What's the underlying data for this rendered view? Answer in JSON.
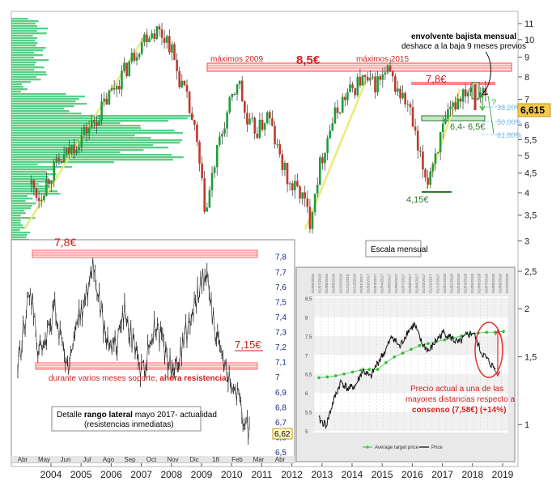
{
  "chart_data": [
    {
      "type": "candlestick",
      "title": "",
      "x_ticks": [
        "2004",
        "2005",
        "2006",
        "2007",
        "2008",
        "2009",
        "2010",
        "2011",
        "2012",
        "2013",
        "2014",
        "2015",
        "2016",
        "2017",
        "2018",
        "2019"
      ],
      "y_ticks": [
        11,
        10,
        9,
        8,
        7,
        6,
        5.5,
        5,
        4.5,
        4,
        3.5,
        3,
        2.5,
        2,
        1.5,
        1
      ],
      "ylim": [
        0.9,
        11.5
      ],
      "yscale": "log",
      "close_path": [
        [
          2003.35,
          4.2
        ],
        [
          2003.6,
          3.9
        ],
        [
          2004.0,
          4.5
        ],
        [
          2004.5,
          5.0
        ],
        [
          2005.0,
          5.6
        ],
        [
          2005.5,
          6.2
        ],
        [
          2006.0,
          7.3
        ],
        [
          2006.5,
          8.4
        ],
        [
          2006.9,
          9.6
        ],
        [
          2007.2,
          10.4
        ],
        [
          2007.5,
          10.6
        ],
        [
          2007.9,
          10.0
        ],
        [
          2008.2,
          8.2
        ],
        [
          2008.5,
          7.0
        ],
        [
          2008.8,
          5.6
        ],
        [
          2009.0,
          4.2
        ],
        [
          2009.15,
          3.5
        ],
        [
          2009.4,
          4.6
        ],
        [
          2009.8,
          6.2
        ],
        [
          2010.1,
          7.3
        ],
        [
          2010.2,
          8.0
        ],
        [
          2010.5,
          6.0
        ],
        [
          2010.9,
          5.8
        ],
        [
          2011.2,
          6.4
        ],
        [
          2011.5,
          5.2
        ],
        [
          2011.9,
          4.2
        ],
        [
          2012.3,
          4.0
        ],
        [
          2012.6,
          3.4
        ],
        [
          2012.9,
          4.6
        ],
        [
          2013.3,
          6.0
        ],
        [
          2013.7,
          7.0
        ],
        [
          2014.0,
          7.4
        ],
        [
          2014.3,
          7.9
        ],
        [
          2014.6,
          7.6
        ],
        [
          2014.9,
          7.8
        ],
        [
          2015.2,
          8.2
        ],
        [
          2015.5,
          7.4
        ],
        [
          2015.9,
          6.6
        ],
        [
          2016.2,
          5.0
        ],
        [
          2016.5,
          4.3
        ],
        [
          2016.8,
          5.2
        ],
        [
          2017.1,
          6.0
        ],
        [
          2017.4,
          6.8
        ],
        [
          2017.7,
          7.4
        ],
        [
          2018.0,
          7.6
        ],
        [
          2018.3,
          7.4
        ],
        [
          2018.45,
          7.0
        ],
        [
          2018.55,
          6.615
        ]
      ],
      "annotations": {
        "max_label": "8,5€",
        "max_2009": "máximos 2009",
        "max_2015": "máximos 2015",
        "res_78": "7,8€",
        "support_band": "6,4- 6,5€",
        "low_415": "4,15€",
        "fib_382": "38,20%",
        "fib_50": "50,00%",
        "fib_618": "61,80%",
        "question": "?",
        "current_price": "6,615",
        "envolvente_title": "envolvente bajista mensual",
        "envolvente_desc": "deshace a la baja 9 meses previos",
        "scale_label": "Escala mensual"
      }
    },
    {
      "type": "line",
      "title": "",
      "x_ticks": [
        "Abr",
        "May",
        "Jun",
        "Jul",
        "Ago",
        "Sep",
        "Oct",
        "Nov",
        "Dic",
        "18",
        "Feb",
        "Mar",
        "Abr"
      ],
      "y_ticks": [
        "7,8",
        "7,7",
        "7,6",
        "7,5",
        "7,4",
        "7,3",
        "7,2",
        "7,1",
        "7",
        "6,9",
        "6,8",
        "6,7",
        "6,6",
        "6,5"
      ],
      "ylim": [
        6.5,
        7.82
      ],
      "series": [
        {
          "values": [
            7.05,
            7.35,
            7.6,
            7.25,
            7.1,
            7.3,
            7.45,
            7.2,
            7.05,
            7.25,
            7.4,
            7.55,
            7.8,
            7.5,
            7.3,
            7.15,
            7.25,
            7.45,
            7.3,
            7.1,
            7.05,
            7.2,
            7.35,
            7.25,
            7.1,
            7.0,
            7.15,
            7.3,
            7.45,
            7.6,
            7.7,
            7.45,
            7.2,
            7.1,
            7.0,
            6.9,
            6.75,
            6.62
          ]
        }
      ],
      "annotations": {
        "res_78": "7,8€",
        "res_715": "7,15€",
        "support_text": "durante varios meses soporte, ",
        "support_bold": "ahora resistencia",
        "detail_text_pre": "Detalle ",
        "detail_bold": "rango lateral",
        "detail_text_post": " mayo 2017- actualidad",
        "detail_line2": "(resistencias inmediatas)",
        "current": "6,62"
      }
    },
    {
      "type": "line",
      "title": "",
      "y_ticks": [
        "8.5",
        "8",
        "7.5",
        "7",
        "6.5",
        "6",
        "5.5",
        "5"
      ],
      "ylim": [
        5,
        8.5
      ],
      "legend": [
        "Average target price",
        "Price"
      ],
      "x_dates": [
        "01/06/2016",
        "01/07/2016",
        "01/08/2016",
        "01/09/2016",
        "01/10/2016",
        "01/11/2016",
        "01/12/2016",
        "01/01/2017",
        "01/02/2017",
        "01/03/2017",
        "01/04/2017",
        "01/05/2017",
        "01/06/2017",
        "01/07/2017",
        "01/08/2017",
        "01/09/2017",
        "01/10/2017",
        "01/11/2017",
        "01/12/2017",
        "01/01/2018",
        "01/02/2018",
        "01/03/2018",
        "01/04/2018",
        "01/05/2018",
        "01/06/2018",
        "01/07/2018",
        "01/08/2018",
        "01/09/2018",
        "01/10/2018"
      ],
      "series": [
        {
          "name": "Average target price",
          "values": [
            6.4,
            6.42,
            6.45,
            6.5,
            6.55,
            6.6,
            6.62,
            6.62,
            6.8,
            6.95,
            7.05,
            7.15,
            7.25,
            7.3,
            7.35,
            7.4,
            7.45,
            7.5,
            7.55,
            7.58,
            7.6,
            7.6,
            7.62
          ]
        },
        {
          "name": "Price",
          "values": [
            5.3,
            5.15,
            5.8,
            6.3,
            6.1,
            6.2,
            6.6,
            6.4,
            6.8,
            7.1,
            7.5,
            7.2,
            7.6,
            7.8,
            7.3,
            7.1,
            7.4,
            7.6,
            7.45,
            7.3,
            7.5,
            7.6,
            7.1,
            6.85,
            6.62
          ]
        }
      ],
      "annotations": {
        "line1": "Precio actual a una de las",
        "line2": "mayores distancias respecto a",
        "line3": "consenso (7,58€) (+14%)"
      }
    }
  ]
}
